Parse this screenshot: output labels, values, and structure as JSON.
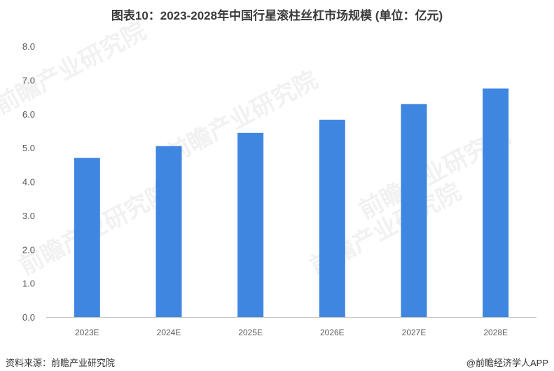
{
  "title": "图表10：2023-2028年中国行星滚柱丝杠市场规模 (单位：亿元)",
  "footer": {
    "source": "资料来源：前瞻产业研究院",
    "brand": "@前瞻经济学人APP"
  },
  "watermark": "前瞻产业研究院",
  "chart_data": {
    "type": "bar",
    "title": "图表10：2023-2028年中国行星滚柱丝杠市场规模 (单位：亿元)",
    "categories": [
      "2023E",
      "2024E",
      "2025E",
      "2026E",
      "2027E",
      "2028E"
    ],
    "values": [
      4.7,
      5.05,
      5.44,
      5.83,
      6.29,
      6.75
    ],
    "ylim": [
      0,
      8
    ],
    "yticks": [
      "0.0",
      "1.0",
      "2.0",
      "3.0",
      "4.0",
      "5.0",
      "6.0",
      "7.0",
      "8.0"
    ],
    "grid": false,
    "bar_color": "#3f86e0"
  }
}
